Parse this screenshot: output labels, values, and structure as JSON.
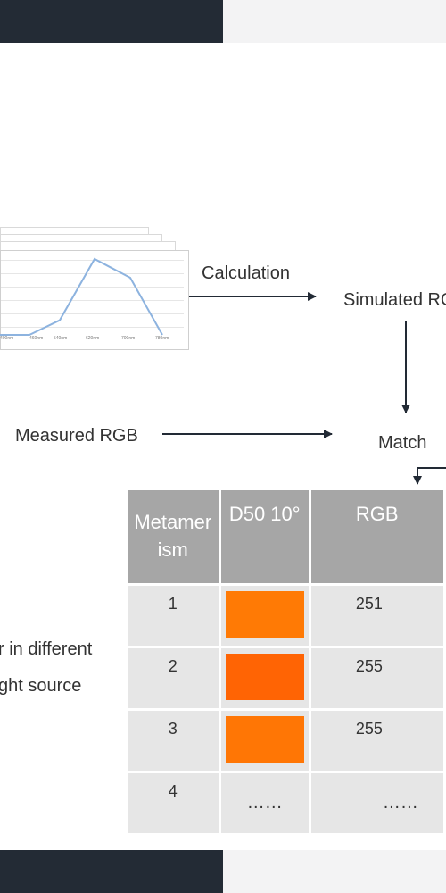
{
  "labels": {
    "calculation": "Calculation",
    "simulated_rgb": "Simulated RGB",
    "measured_rgb": "Measured RGB",
    "match": "Match",
    "side_text_line1": "r in different",
    "side_text_line2": "ght source"
  },
  "spectrum_chart": {
    "x_ticks": [
      "400nm",
      "460nm",
      "540nm",
      "620nm",
      "700nm",
      "780nm"
    ],
    "values": [
      0,
      0,
      0.18,
      0.93,
      0.7,
      0
    ]
  },
  "table": {
    "headers": [
      "Metamerism",
      "D50 10°",
      "RGB"
    ],
    "rows": [
      {
        "index": "1",
        "swatch_color": "#ff7a05",
        "rgb": "251"
      },
      {
        "index": "2",
        "swatch_color": "#ff6404",
        "rgb": "255"
      },
      {
        "index": "3",
        "swatch_color": "#ff7605",
        "rgb": "255"
      },
      {
        "index": "4",
        "placeholder": "……",
        "rgb": "……"
      }
    ]
  }
}
